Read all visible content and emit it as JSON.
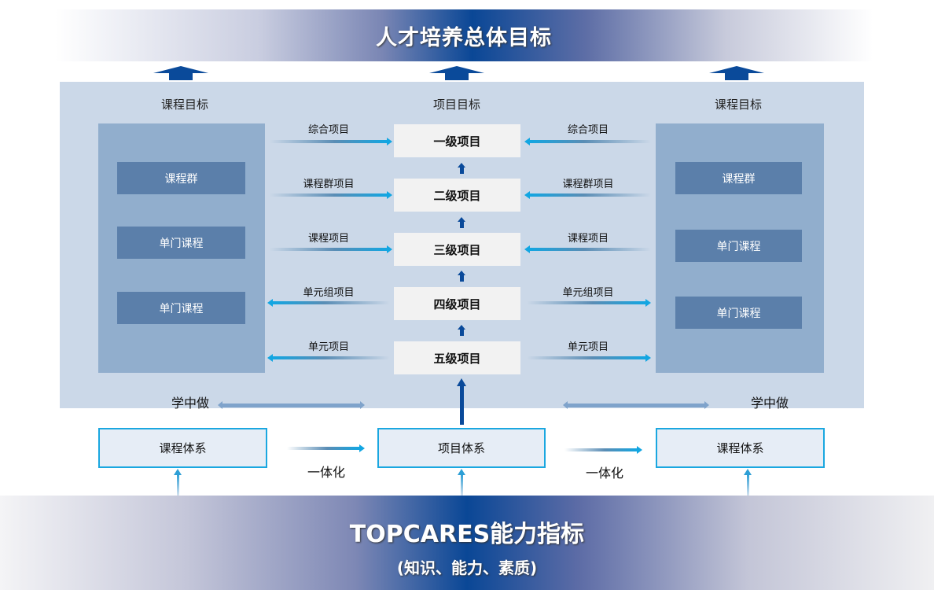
{
  "top_banner": {
    "title": "人才培养总体目标"
  },
  "panel": {
    "headers": {
      "left": "课程目标",
      "center": "项目目标",
      "right": "课程目标"
    },
    "left_courses": [
      "课程群",
      "单门课程",
      "单门课程"
    ],
    "right_courses": [
      "课程群",
      "单门课程",
      "单门课程"
    ],
    "levels": [
      "一级项目",
      "二级项目",
      "三级项目",
      "四级项目",
      "五级项目"
    ],
    "arrow_labels": [
      "综合项目",
      "课程群项目",
      "课程项目",
      "单元组项目",
      "单元项目"
    ],
    "learn_by_doing": "学中做"
  },
  "systems": {
    "left": "课程体系",
    "center": "项目体系",
    "right": "课程体系",
    "integration": "一体化"
  },
  "bottom_banner": {
    "title": "TOPCARES能力指标",
    "subtitle": "(知识、能力、素质)"
  },
  "colors": {
    "banner_dark": "#0a4796",
    "panel_bg": "#cbd8e8",
    "course_box": "#5b7faa",
    "arrow": "#12a6e2"
  }
}
